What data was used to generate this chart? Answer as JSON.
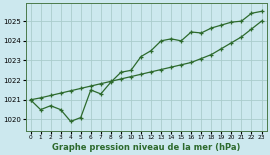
{
  "title": "Graphe pression niveau de la mer (hPa)",
  "bg_color": "#cce8ee",
  "grid_color": "#aacccc",
  "line_color": "#2d6a2d",
  "x_labels": [
    "0",
    "1",
    "2",
    "3",
    "4",
    "5",
    "6",
    "7",
    "8",
    "9",
    "10",
    "11",
    "12",
    "13",
    "14",
    "15",
    "16",
    "17",
    "18",
    "19",
    "20",
    "21",
    "22",
    "23"
  ],
  "y_ticks": [
    1020,
    1021,
    1022,
    1023,
    1024,
    1025
  ],
  "ylim": [
    1019.4,
    1025.9
  ],
  "xlim": [
    -0.5,
    23.5
  ],
  "actual_y": [
    1021.0,
    1020.5,
    1020.7,
    1020.5,
    1019.9,
    1020.1,
    1021.5,
    1021.3,
    1021.9,
    1022.4,
    1022.5,
    1023.2,
    1023.5,
    1024.0,
    1024.1,
    1024.0,
    1024.45,
    1024.4,
    1024.65,
    1024.8,
    1024.95,
    1025.0,
    1025.4,
    1025.5
  ],
  "trend_y": [
    1021.0,
    1021.1,
    1021.22,
    1021.34,
    1021.46,
    1021.58,
    1021.7,
    1021.82,
    1021.94,
    1022.06,
    1022.18,
    1022.3,
    1022.42,
    1022.54,
    1022.66,
    1022.78,
    1022.9,
    1023.1,
    1023.3,
    1023.6,
    1023.9,
    1024.2,
    1024.6,
    1025.0
  ]
}
